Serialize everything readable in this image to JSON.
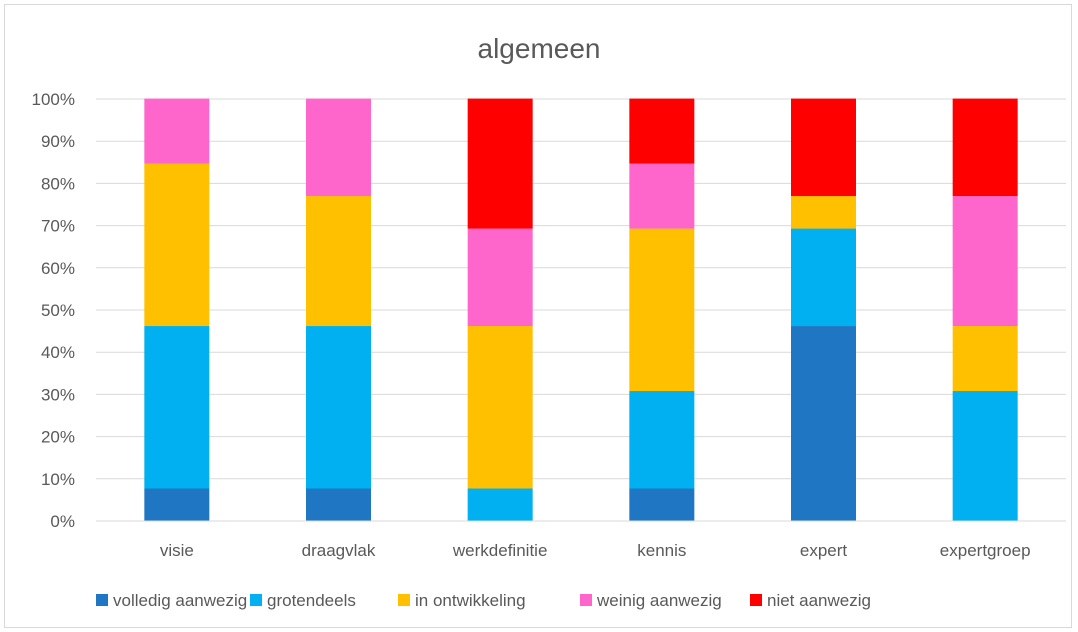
{
  "chart_data": {
    "type": "bar",
    "stacked": true,
    "title": "algemeen",
    "categories": [
      "visie",
      "draagvlak",
      "werkdefinitie",
      "kennis",
      "expert",
      "expertgroep"
    ],
    "series": [
      {
        "name": "volledig aanwezig",
        "color": "#1f77c4",
        "values": [
          7.7,
          7.7,
          0,
          7.7,
          46.2,
          0
        ]
      },
      {
        "name": "grotendeels",
        "color": "#00b0f0",
        "values": [
          38.5,
          38.5,
          7.7,
          23.1,
          23.1,
          30.8
        ]
      },
      {
        "name": "in ontwikkeling",
        "color": "#ffc000",
        "values": [
          38.5,
          30.8,
          38.5,
          38.5,
          7.7,
          15.4
        ]
      },
      {
        "name": "weinig aanwezig",
        "color": "#ff66cc",
        "values": [
          15.4,
          23.1,
          23.1,
          15.4,
          0,
          30.8
        ]
      },
      {
        "name": "niet aanwezig",
        "color": "#ff0000",
        "values": [
          0,
          0,
          30.8,
          15.4,
          23.1,
          23.1
        ]
      }
    ],
    "ylim": [
      0,
      100
    ],
    "yticks": [
      "0%",
      "10%",
      "20%",
      "30%",
      "40%",
      "50%",
      "60%",
      "70%",
      "80%",
      "90%",
      "100%"
    ],
    "grid": true,
    "legend_position": "bottom",
    "xlabel": "",
    "ylabel": ""
  }
}
